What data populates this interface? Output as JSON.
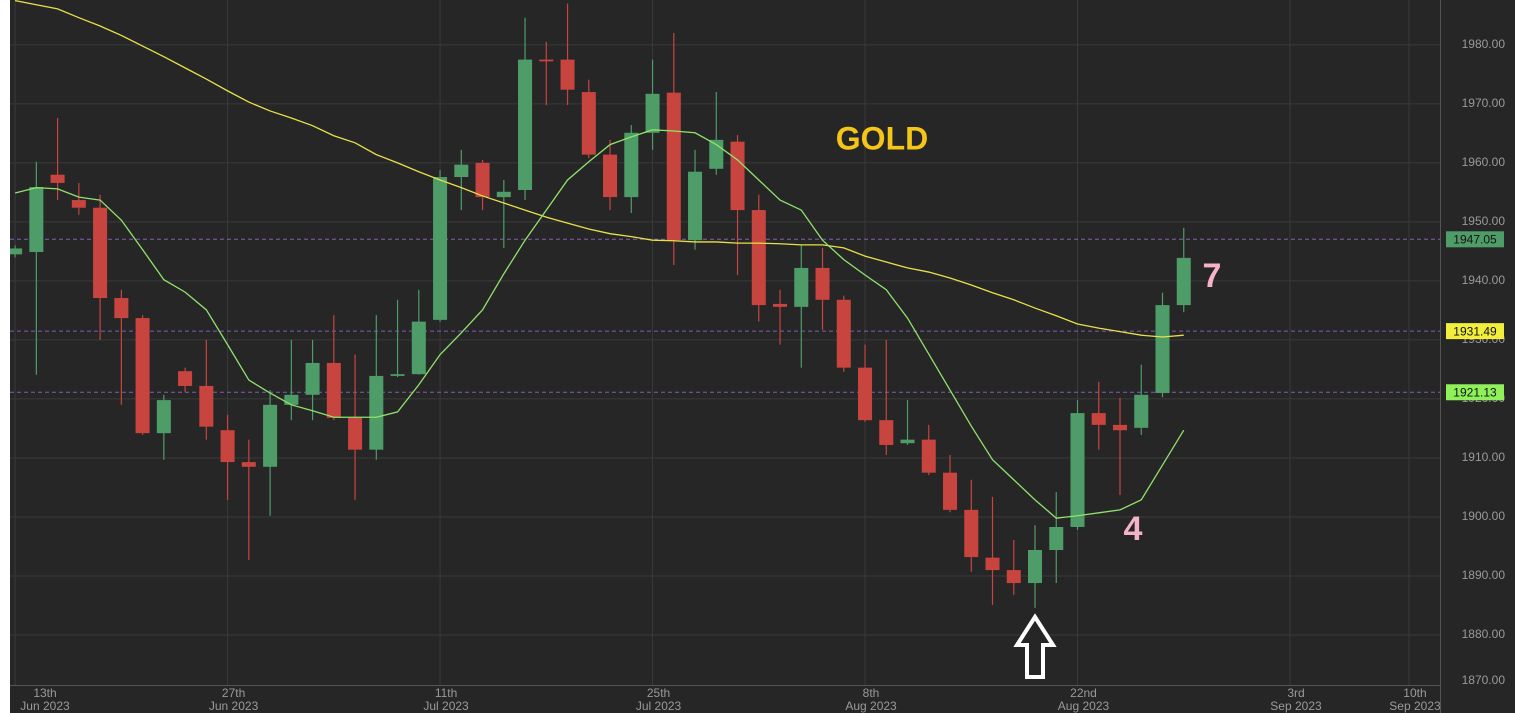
{
  "chart_data": {
    "type": "candlestick",
    "x": [
      0,
      1,
      2,
      3,
      4,
      5,
      6,
      7,
      8,
      9,
      10,
      11,
      12,
      13,
      14,
      15,
      16,
      17,
      18,
      19,
      20,
      21,
      22,
      23,
      24,
      25,
      26,
      27,
      28,
      29,
      30,
      31,
      32,
      33,
      34,
      35,
      36,
      37,
      38,
      39,
      40,
      41,
      42,
      43,
      44,
      45,
      46,
      47,
      48,
      49,
      50,
      51,
      52,
      53,
      54,
      55
    ],
    "open": [
      1944.5,
      1944.9,
      1958.0,
      1953.7,
      1952.4,
      1937.1,
      1933.7,
      1914.2,
      1924.7,
      1922.2,
      1914.7,
      1909.3,
      1908.5,
      1919.0,
      1920.7,
      1926.1,
      1916.8,
      1911.4,
      1923.9,
      1924.2,
      1933.4,
      1957.6,
      1960.0,
      1954.2,
      1955.4,
      1977.5,
      1977.5,
      1972.0,
      1961.4,
      1954.2,
      1965.1,
      1971.9,
      1946.9,
      1959.0,
      1963.6,
      1952.0,
      1936.1,
      1935.6,
      1942.2,
      1936.8,
      1925.3,
      1916.4,
      1912.5,
      1913.1,
      1907.5,
      1901.2,
      1893.1,
      1891.0,
      1888.8,
      1894.4,
      1898.3,
      1917.6,
      1915.6,
      1915.1,
      1921.0,
      1935.9
    ],
    "high": [
      1946.0,
      1960.2,
      1967.6,
      1956.6,
      1954.6,
      1938.5,
      1934.2,
      1920.7,
      1925.3,
      1930.0,
      1917.3,
      1913.1,
      1921.5,
      1930.0,
      1930.0,
      1934.2,
      1927.5,
      1934.2,
      1936.8,
      1938.5,
      1958.8,
      1962.2,
      1960.5,
      1957.1,
      1984.6,
      1980.5,
      1987.0,
      1974.1,
      1963.9,
      1966.4,
      1977.5,
      1982.0,
      1962.2,
      1972.0,
      1964.7,
      1954.6,
      1938.5,
      1946.1,
      1945.6,
      1937.5,
      1929.2,
      1930.0,
      1919.8,
      1915.6,
      1910.5,
      1906.3,
      1903.4,
      1896.1,
      1898.6,
      1904.2,
      1919.8,
      1922.9,
      1920.2,
      1925.8,
      1938.0,
      1949.0
    ],
    "low": [
      1944.0,
      1924.1,
      1953.7,
      1951.2,
      1930.0,
      1919.0,
      1913.9,
      1909.7,
      1921.2,
      1913.1,
      1902.9,
      1892.7,
      1900.2,
      1916.4,
      1916.4,
      1916.4,
      1902.9,
      1909.7,
      1923.7,
      1924.1,
      1933.1,
      1952.0,
      1952.0,
      1945.6,
      1953.7,
      1969.8,
      1969.8,
      1960.8,
      1952.0,
      1951.5,
      1962.2,
      1942.7,
      1945.3,
      1958.0,
      1941.0,
      1933.1,
      1929.2,
      1925.3,
      1931.7,
      1924.6,
      1916.1,
      1910.5,
      1912.2,
      1907.1,
      1900.8,
      1890.7,
      1885.1,
      1886.8,
      1884.6,
      1888.8,
      1897.8,
      1911.4,
      1903.7,
      1913.9,
      1920.3,
      1934.7
    ],
    "close": [
      1945.5,
      1955.9,
      1956.6,
      1952.4,
      1937.1,
      1933.7,
      1914.2,
      1919.8,
      1922.2,
      1915.3,
      1909.3,
      1908.5,
      1919.0,
      1920.7,
      1926.1,
      1916.8,
      1911.4,
      1923.9,
      1924.2,
      1933.1,
      1957.6,
      1959.7,
      1954.2,
      1955.1,
      1977.5,
      1977.2,
      1972.4,
      1961.4,
      1954.2,
      1965.1,
      1971.7,
      1946.9,
      1958.5,
      1963.9,
      1952.0,
      1935.9,
      1935.6,
      1942.2,
      1936.8,
      1925.3,
      1916.4,
      1912.2,
      1913.1,
      1907.5,
      1901.2,
      1893.2,
      1891.0,
      1888.8,
      1894.4,
      1898.3,
      1917.6,
      1915.6,
      1914.7,
      1920.7,
      1935.9,
      1943.9
    ],
    "up_color": "#4e9c68",
    "down_color": "#c8443f",
    "lines": [
      {
        "color": "#e8e04a",
        "values": [
          1987.5,
          1986.8,
          1986.1,
          1984.6,
          1983.2,
          1981.6,
          1979.8,
          1978.0,
          1976.1,
          1974.2,
          1972.2,
          1970.3,
          1968.8,
          1967.6,
          1966.3,
          1964.6,
          1963.4,
          1961.4,
          1960.0,
          1958.5,
          1957.1,
          1955.8,
          1954.4,
          1953.2,
          1952.0,
          1950.8,
          1949.8,
          1948.8,
          1948.0,
          1947.5,
          1946.9,
          1946.8,
          1946.6,
          1946.6,
          1946.4,
          1946.4,
          1946.3,
          1946.1,
          1946.1,
          1945.6,
          1944.2,
          1943.2,
          1942.2,
          1941.5,
          1940.5,
          1939.3,
          1938.0,
          1936.8,
          1935.4,
          1934.1,
          1932.7,
          1932.0,
          1931.4,
          1930.8,
          1930.5,
          1930.8
        ]
      },
      {
        "color": "#8fe36a",
        "values": [
          1954.9,
          1955.8,
          1955.6,
          1954.2,
          1953.7,
          1950.3,
          1945.3,
          1940.2,
          1938.1,
          1935.1,
          1929.2,
          1923.2,
          1921.0,
          1919.0,
          1918.0,
          1916.9,
          1916.9,
          1916.9,
          1917.8,
          1922.4,
          1927.5,
          1931.2,
          1935.1,
          1941.2,
          1946.9,
          1952.0,
          1957.1,
          1960.2,
          1963.1,
          1964.4,
          1965.6,
          1965.4,
          1965.1,
          1963.1,
          1960.5,
          1957.1,
          1953.7,
          1952.0,
          1946.9,
          1943.6,
          1941.0,
          1938.5,
          1933.7,
          1927.6,
          1921.5,
          1915.4,
          1909.7,
          1906.3,
          1902.9,
          1899.8,
          1900.2,
          1900.7,
          1901.2,
          1902.9,
          1908.8,
          1914.7
        ]
      }
    ],
    "price_labels": [
      {
        "value": 1947.05,
        "color": "#4e9c68"
      },
      {
        "value": 1931.49,
        "color": "#f2ee3c"
      },
      {
        "value": 1921.13,
        "color": "#8ff05a"
      }
    ],
    "xlim": [
      -0.24,
      67.06
    ],
    "ylim": [
      1870,
      1987.6
    ],
    "yticks": [
      {
        "value": 1870,
        "label": "1870.00"
      },
      {
        "value": 1880,
        "label": "1880.00"
      },
      {
        "value": 1890,
        "label": "1890.00"
      },
      {
        "value": 1900,
        "label": "1900.00"
      },
      {
        "value": 1910,
        "label": "1910.00"
      },
      {
        "value": 1920,
        "label": "1920.00"
      },
      {
        "value": 1930,
        "label": "1930.00"
      },
      {
        "value": 1940,
        "label": "1940.00"
      },
      {
        "value": 1950,
        "label": "1950.00"
      },
      {
        "value": 1960,
        "label": "1960.00"
      },
      {
        "value": 1970,
        "label": "1970.00"
      },
      {
        "value": 1980,
        "label": "1980.00"
      }
    ],
    "xticks": [
      {
        "value": 0,
        "label": "13th"
      },
      {
        "value": 10,
        "label": "27th"
      },
      {
        "value": 20,
        "label": "11th"
      },
      {
        "value": 30,
        "label": "25th"
      },
      {
        "value": 40,
        "label": "8th"
      },
      {
        "value": 50,
        "label": "22nd"
      },
      {
        "value": 60,
        "label": "3rd"
      },
      {
        "value": 65.6,
        "label": "10th"
      }
    ],
    "xtick_months": [
      "Jun 2023",
      "Jun 2023",
      "Jul 2023",
      "Jul 2023",
      "Aug 2023",
      "Aug 2023",
      "Sep 2023",
      "Sep 2023"
    ],
    "grid": true,
    "title": "GOLD",
    "wave_labels": [
      "7",
      "4"
    ]
  }
}
